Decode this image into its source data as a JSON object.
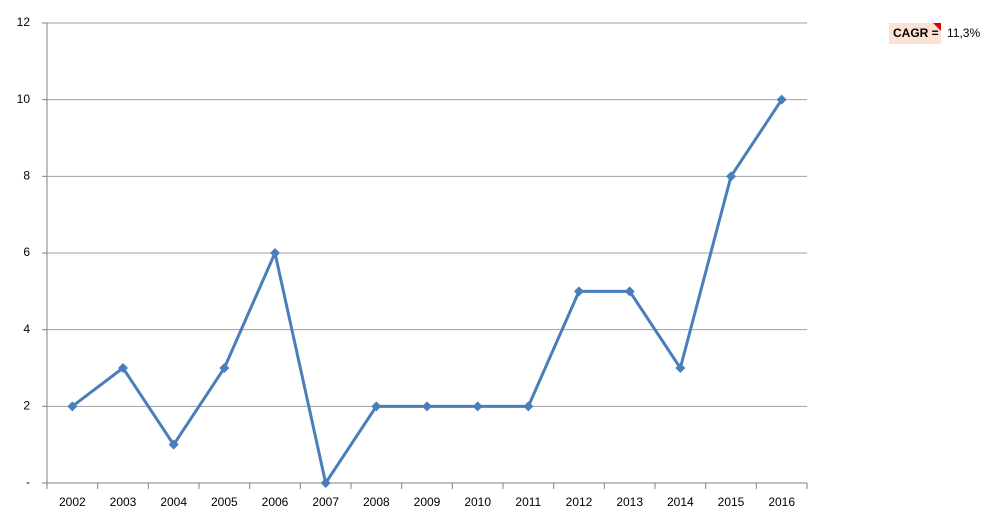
{
  "chart_data": {
    "type": "line",
    "categories": [
      2002,
      2003,
      2004,
      2005,
      2006,
      2007,
      2008,
      2009,
      2010,
      2011,
      2012,
      2013,
      2014,
      2015,
      2016
    ],
    "series": [
      {
        "color": "#4a7ebb",
        "values": [
          2,
          3,
          1,
          3,
          6,
          0,
          2,
          2,
          2,
          2,
          5,
          5,
          3,
          8,
          10
        ]
      }
    ],
    "ylim": [
      0,
      12
    ],
    "yticks": [
      {
        "value": 0,
        "label": "-"
      },
      2,
      4,
      6,
      8,
      10,
      12
    ],
    "grid": true,
    "annotation": {
      "label": "CAGR =",
      "text": "11,3%"
    }
  }
}
